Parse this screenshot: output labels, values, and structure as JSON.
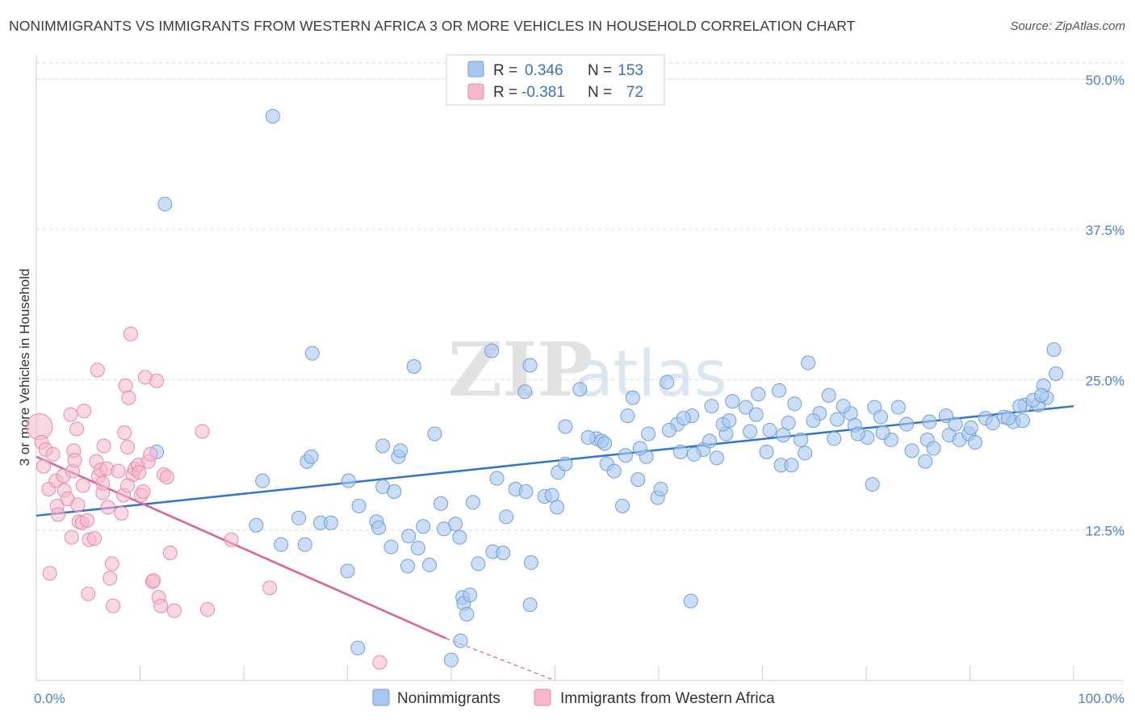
{
  "title": "NONIMMIGRANTS VS IMMIGRANTS FROM WESTERN AFRICA 3 OR MORE VEHICLES IN HOUSEHOLD CORRELATION CHART",
  "source": "Source: ZipAtlas.com",
  "watermark": {
    "zip": "ZIP",
    "atlas": "atlas"
  },
  "colors": {
    "blue_fill": "#a8c8ef",
    "blue_stroke": "#6fa0dc",
    "blue_line": "#2f74d0",
    "pink_fill": "#f6b8cc",
    "pink_stroke": "#e98aa8",
    "pink_line": "#e0608c",
    "tick_text": "#4a7fcf",
    "grid": "#d9d9d9"
  },
  "legend": {
    "rows": [
      {
        "r_label": "R =",
        "r_value": "0.346",
        "n_label": "N =",
        "n_value": "153"
      },
      {
        "r_label": "R =",
        "r_value": "-0.381",
        "n_label": "N =",
        "n_value": "72"
      }
    ]
  },
  "chart_data": {
    "type": "scatter",
    "ylabel": "3 or more Vehicles in Household",
    "xlim": [
      0,
      100
    ],
    "ylim": [
      0,
      52
    ],
    "x_tick_labels": [
      "0.0%",
      "100.0%"
    ],
    "y_ticks": [
      {
        "value": 12.5,
        "label": "12.5%"
      },
      {
        "value": 25.0,
        "label": "25.0%"
      },
      {
        "value": 37.5,
        "label": "37.5%"
      },
      {
        "value": 50.0,
        "label": "50.0%"
      }
    ],
    "grid": true,
    "legend_position": "bottom",
    "series": [
      {
        "name": "Nonimmigrants",
        "color": "#a8c8ef",
        "trend": {
          "x": [
            0,
            100
          ],
          "y": [
            13.7,
            22.8
          ]
        },
        "points": [
          [
            22.8,
            46.9
          ],
          [
            12.4,
            39.6
          ],
          [
            26.6,
            27.2
          ],
          [
            43.9,
            27.4
          ],
          [
            36.4,
            26.1
          ],
          [
            47.6,
            26.2
          ],
          [
            74.4,
            26.4
          ],
          [
            98.1,
            27.5
          ],
          [
            11.6,
            19.0
          ],
          [
            21.8,
            16.6
          ],
          [
            26.1,
            18.2
          ],
          [
            26.5,
            18.6
          ],
          [
            30.1,
            16.6
          ],
          [
            31.1,
            14.5
          ],
          [
            33.4,
            19.5
          ],
          [
            33.4,
            16.1
          ],
          [
            34.9,
            18.6
          ],
          [
            35.1,
            19.1
          ],
          [
            38.4,
            20.5
          ],
          [
            39.0,
            14.7
          ],
          [
            25.3,
            13.5
          ],
          [
            27.4,
            13.1
          ],
          [
            21.2,
            12.9
          ],
          [
            30.0,
            9.1
          ],
          [
            23.6,
            11.3
          ],
          [
            32.8,
            13.2
          ],
          [
            33.0,
            12.7
          ],
          [
            34.2,
            11.1
          ],
          [
            35.8,
            9.5
          ],
          [
            35.9,
            12.0
          ],
          [
            37.9,
            9.6
          ],
          [
            40.4,
            13.0
          ],
          [
            40.8,
            11.9
          ],
          [
            41.1,
            6.9
          ],
          [
            41.2,
            6.4
          ],
          [
            41.8,
            7.1
          ],
          [
            42.6,
            9.7
          ],
          [
            44.0,
            10.7
          ],
          [
            45.0,
            10.6
          ],
          [
            46.2,
            15.9
          ],
          [
            47.2,
            15.7
          ],
          [
            47.7,
            9.8
          ],
          [
            47.1,
            24.0
          ],
          [
            49.0,
            15.3
          ],
          [
            49.7,
            15.4
          ],
          [
            50.2,
            14.4
          ],
          [
            51.0,
            21.1
          ],
          [
            54.0,
            20.1
          ],
          [
            55.0,
            18.0
          ],
          [
            57.5,
            23.5
          ],
          [
            55.7,
            17.4
          ],
          [
            54.5,
            19.9
          ],
          [
            56.5,
            14.5
          ],
          [
            58.8,
            18.6
          ],
          [
            59.0,
            20.5
          ],
          [
            58.2,
            19.3
          ],
          [
            59.9,
            15.2
          ],
          [
            61.8,
            21.3
          ],
          [
            62.1,
            19.0
          ],
          [
            63.2,
            22.0
          ],
          [
            64.3,
            19.2
          ],
          [
            65.1,
            22.8
          ],
          [
            65.6,
            18.5
          ],
          [
            66.5,
            20.5
          ],
          [
            68.4,
            22.7
          ],
          [
            69.4,
            22.1
          ],
          [
            70.7,
            20.8
          ],
          [
            71.6,
            24.1
          ],
          [
            71.8,
            17.9
          ],
          [
            72.5,
            21.4
          ],
          [
            72.8,
            17.9
          ],
          [
            73.7,
            20.0
          ],
          [
            74.1,
            18.9
          ],
          [
            75.5,
            22.2
          ],
          [
            77.2,
            21.7
          ],
          [
            76.4,
            23.7
          ],
          [
            78.5,
            22.2
          ],
          [
            78.9,
            21.2
          ],
          [
            80.8,
            22.7
          ],
          [
            80.6,
            16.3
          ],
          [
            80.1,
            20.2
          ],
          [
            81.4,
            21.9
          ],
          [
            82.4,
            20.0
          ],
          [
            83.1,
            22.7
          ],
          [
            83.9,
            21.3
          ],
          [
            85.9,
            20.0
          ],
          [
            85.7,
            18.2
          ],
          [
            86.5,
            19.3
          ],
          [
            87.7,
            22.0
          ],
          [
            88.0,
            20.4
          ],
          [
            89.0,
            20.0
          ],
          [
            89.9,
            20.5
          ],
          [
            90.5,
            19.8
          ],
          [
            91.5,
            21.8
          ],
          [
            93.3,
            21.9
          ],
          [
            94.2,
            21.5
          ],
          [
            95.1,
            21.6
          ],
          [
            95.3,
            22.9
          ],
          [
            96.6,
            22.9
          ],
          [
            97.1,
            24.5
          ],
          [
            98.3,
            25.5
          ],
          [
            97.4,
            23.5
          ],
          [
            93.7,
            21.8
          ],
          [
            96.1,
            23.3
          ],
          [
            41.5,
            5.5
          ],
          [
            47.6,
            6.3
          ],
          [
            31.0,
            2.7
          ],
          [
            40.0,
            1.7
          ],
          [
            40.9,
            3.3
          ],
          [
            63.1,
            6.6
          ],
          [
            25.9,
            11.3
          ],
          [
            28.4,
            13.1
          ],
          [
            36.8,
            11.0
          ],
          [
            37.3,
            12.8
          ],
          [
            42.1,
            14.8
          ],
          [
            45.3,
            13.6
          ],
          [
            50.3,
            17.3
          ],
          [
            51.0,
            18.0
          ],
          [
            54.8,
            19.7
          ],
          [
            56.8,
            18.7
          ],
          [
            58.0,
            16.7
          ],
          [
            60.2,
            15.9
          ],
          [
            61.0,
            20.8
          ],
          [
            63.4,
            18.8
          ],
          [
            64.9,
            19.9
          ],
          [
            66.2,
            21.3
          ],
          [
            67.1,
            23.2
          ],
          [
            68.8,
            20.7
          ],
          [
            70.4,
            19.0
          ],
          [
            73.1,
            23.0
          ],
          [
            74.9,
            21.6
          ],
          [
            76.9,
            20.1
          ],
          [
            79.2,
            20.5
          ],
          [
            81.6,
            20.6
          ],
          [
            84.4,
            19.1
          ],
          [
            86.1,
            21.5
          ],
          [
            88.6,
            21.3
          ],
          [
            90.1,
            21.0
          ],
          [
            92.2,
            21.4
          ],
          [
            94.8,
            22.8
          ],
          [
            96.9,
            23.7
          ],
          [
            52.4,
            24.2
          ],
          [
            60.8,
            24.8
          ],
          [
            69.6,
            23.8
          ],
          [
            77.8,
            22.8
          ],
          [
            44.4,
            16.8
          ],
          [
            39.3,
            12.6
          ],
          [
            34.5,
            15.7
          ],
          [
            53.2,
            20.2
          ],
          [
            57.0,
            22.0
          ],
          [
            62.4,
            21.8
          ],
          [
            66.8,
            21.6
          ],
          [
            72.0,
            20.4
          ]
        ]
      },
      {
        "name": "Immigrants from Western Africa",
        "color": "#f6b8cc",
        "trend": {
          "x": [
            0,
            39.5
          ],
          "y": [
            18.6,
            3.5
          ]
        },
        "trend_dashed": {
          "x": [
            39.5,
            50
          ],
          "y": [
            3.5,
            -0.5
          ]
        },
        "points": [
          [
            0.3,
            21.1
          ],
          [
            0.5,
            19.8
          ],
          [
            0.7,
            17.8
          ],
          [
            0.9,
            19.2
          ],
          [
            1.2,
            15.9
          ],
          [
            1.3,
            8.9
          ],
          [
            1.6,
            18.8
          ],
          [
            1.9,
            16.6
          ],
          [
            2.0,
            14.5
          ],
          [
            2.1,
            13.8
          ],
          [
            2.6,
            17.0
          ],
          [
            2.7,
            15.8
          ],
          [
            3.0,
            15.1
          ],
          [
            3.3,
            22.1
          ],
          [
            3.4,
            11.9
          ],
          [
            3.5,
            17.4
          ],
          [
            3.6,
            19.1
          ],
          [
            3.7,
            18.3
          ],
          [
            3.9,
            20.9
          ],
          [
            4.0,
            14.6
          ],
          [
            4.1,
            13.2
          ],
          [
            4.4,
            13.1
          ],
          [
            4.5,
            16.2
          ],
          [
            4.6,
            22.4
          ],
          [
            4.9,
            13.3
          ],
          [
            5.0,
            7.2
          ],
          [
            5.1,
            11.7
          ],
          [
            5.6,
            11.8
          ],
          [
            5.8,
            18.2
          ],
          [
            5.9,
            25.8
          ],
          [
            6.0,
            17.0
          ],
          [
            6.2,
            17.5
          ],
          [
            6.4,
            15.6
          ],
          [
            6.5,
            19.5
          ],
          [
            6.8,
            17.6
          ],
          [
            6.9,
            14.4
          ],
          [
            7.1,
            8.5
          ],
          [
            7.3,
            9.7
          ],
          [
            7.4,
            6.2
          ],
          [
            7.9,
            17.4
          ],
          [
            8.2,
            13.9
          ],
          [
            8.4,
            15.4
          ],
          [
            8.5,
            20.6
          ],
          [
            8.6,
            24.5
          ],
          [
            8.8,
            19.4
          ],
          [
            8.9,
            23.5
          ],
          [
            9.1,
            28.8
          ],
          [
            9.3,
            17.1
          ],
          [
            9.5,
            17.6
          ],
          [
            9.8,
            17.9
          ],
          [
            9.9,
            17.3
          ],
          [
            10.1,
            15.4
          ],
          [
            10.3,
            15.7
          ],
          [
            10.5,
            25.2
          ],
          [
            10.8,
            18.2
          ],
          [
            11.0,
            18.8
          ],
          [
            11.2,
            8.2
          ],
          [
            11.3,
            8.3
          ],
          [
            11.6,
            24.9
          ],
          [
            11.8,
            6.9
          ],
          [
            12.0,
            6.2
          ],
          [
            12.3,
            17.1
          ],
          [
            12.6,
            16.9
          ],
          [
            12.9,
            10.6
          ],
          [
            13.3,
            5.8
          ],
          [
            16.0,
            20.7
          ],
          [
            16.5,
            5.9
          ],
          [
            18.8,
            11.7
          ],
          [
            22.5,
            7.7
          ],
          [
            33.1,
            1.5
          ],
          [
            8.8,
            16.2
          ],
          [
            6.4,
            16.4
          ]
        ]
      }
    ]
  }
}
